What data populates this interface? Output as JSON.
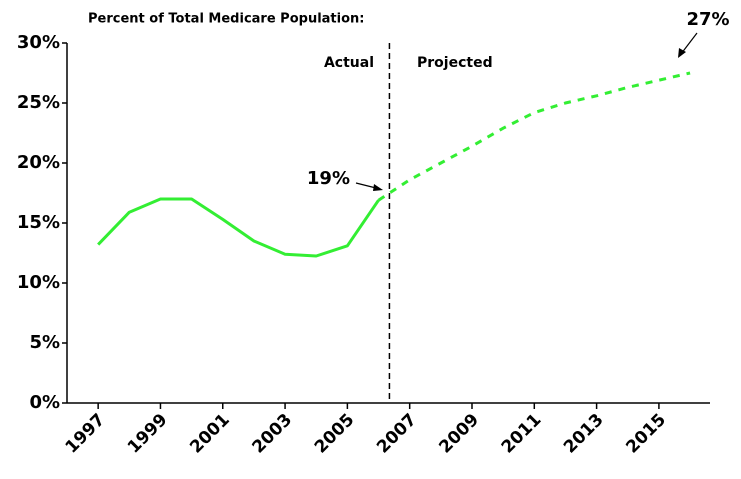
{
  "chart_data": {
    "type": "line",
    "title": "Percent of Total Medicare Population:",
    "x": [
      1997,
      1998,
      1999,
      2000,
      2001,
      2002,
      2003,
      2004,
      2005,
      2006,
      2007,
      2008,
      2009,
      2010,
      2011,
      2012,
      2013,
      2014,
      2015,
      2016
    ],
    "series": [
      {
        "name": "Actual",
        "color": "#33ee33",
        "dashed": false,
        "values": [
          13.2,
          15.9,
          17.0,
          17.0,
          15.3,
          13.5,
          12.4,
          12.25,
          13.1,
          16.9,
          null,
          null,
          null,
          null,
          null,
          null,
          null,
          null,
          null,
          null
        ]
      },
      {
        "name": "Projected",
        "color": "#33ee33",
        "dashed": true,
        "values": [
          null,
          null,
          null,
          null,
          null,
          null,
          null,
          null,
          null,
          16.9,
          18.6,
          20.0,
          21.4,
          22.9,
          24.2,
          25.0,
          25.6,
          26.3,
          26.9,
          27.5
        ]
      }
    ],
    "divider": 2006.35,
    "annotations": [
      "19%",
      "27%"
    ],
    "xlim": [
      1996,
      2016.64
    ],
    "xticks": [
      1997,
      1999,
      2001,
      2003,
      2005,
      2007,
      2009,
      2011,
      2013,
      2015
    ],
    "ylim": [
      0,
      30
    ],
    "yticks": [
      {
        "value": 0,
        "label": "0%"
      },
      {
        "value": 5,
        "label": "5%"
      },
      {
        "value": 10,
        "label": "10%"
      },
      {
        "value": 15,
        "label": "15%"
      },
      {
        "value": 20,
        "label": "20%"
      },
      {
        "value": 25,
        "label": "25%"
      },
      {
        "value": 30,
        "label": "30%"
      }
    ]
  }
}
